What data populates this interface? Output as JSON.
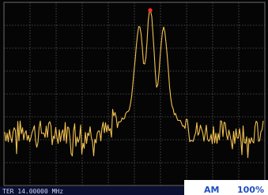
{
  "screen": {
    "frequency": "TER 14.00000 MHz",
    "mode": "AM",
    "depth": "100%"
  }
}
